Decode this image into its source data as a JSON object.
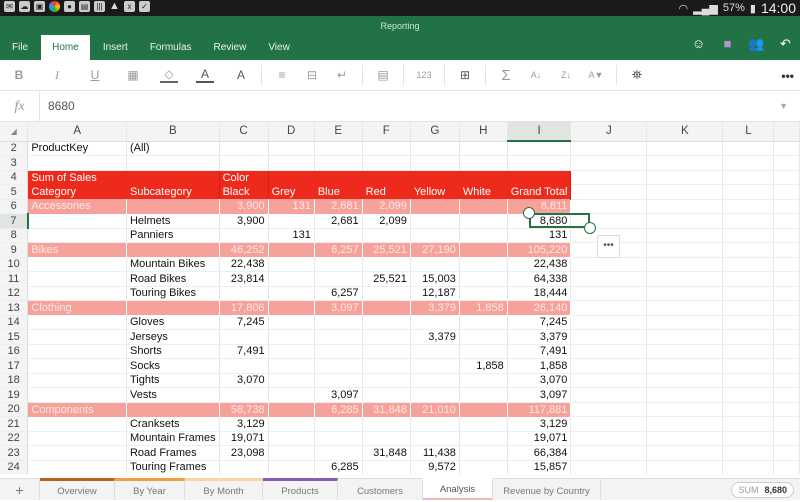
{
  "status_bar": {
    "notification_icons": [
      "mail-icon",
      "cloud-check-icon",
      "gallery-icon",
      "color-app-icon",
      "ghost-icon",
      "book-icon",
      "barcode-icon",
      "warning-icon",
      "excel-x-icon",
      "briefcase-check-icon"
    ],
    "battery": "57%",
    "time": "14:00"
  },
  "app": {
    "title": "Reporting",
    "menu_tabs": [
      {
        "label": "File"
      },
      {
        "label": "Home",
        "active": true
      },
      {
        "label": "Insert"
      },
      {
        "label": "Formulas"
      },
      {
        "label": "Review"
      },
      {
        "label": "View"
      }
    ],
    "title_icons": [
      "smiley-feedback-icon",
      "save-icon",
      "share-people-icon",
      "undo-icon"
    ]
  },
  "ribbon": {
    "bold": "B",
    "italic": "I",
    "underline": "U",
    "borders": "▦",
    "fill": "◇",
    "font_color": "A",
    "font_size": "A",
    "align": "≡",
    "merge": "⊟",
    "wrap": "↵",
    "cond_format": "▤",
    "number_format": "123",
    "insert_cells": "⊞",
    "autosum": "Σ",
    "sort_az": "A↓",
    "sort_za": "Z↓",
    "filter": "A▼",
    "find": "🔍",
    "more": "•••"
  },
  "formula_bar": {
    "fx_label": "fx",
    "value": "8680"
  },
  "sheet": {
    "columns": [
      "A",
      "B",
      "C",
      "D",
      "E",
      "F",
      "G",
      "H",
      "I",
      "J",
      "K",
      "L"
    ],
    "selected_column": "I",
    "selected_row": "7",
    "rows": [
      {
        "n": "2",
        "type": "plain",
        "cells": [
          "ProductKey",
          "(All)",
          "",
          "",
          "",
          "",
          "",
          "",
          ""
        ]
      },
      {
        "n": "3",
        "type": "plain",
        "cells": [
          "",
          "",
          "",
          "",
          "",
          "",
          "",
          "",
          ""
        ]
      },
      {
        "n": "4",
        "type": "hdr",
        "cells": [
          "Sum of Sales",
          "",
          "Color",
          "",
          "",
          "",
          "",
          "",
          ""
        ]
      },
      {
        "n": "5",
        "type": "hdr",
        "cells": [
          "Category",
          "Subcategory",
          "Black",
          "Grey",
          "Blue",
          "Red",
          "Yellow",
          "White",
          "Grand Total"
        ]
      },
      {
        "n": "6",
        "type": "cat",
        "cells": [
          "Accessories",
          "",
          "3,900",
          "131",
          "2,681",
          "2,099",
          "",
          "",
          "8,811"
        ]
      },
      {
        "n": "7",
        "type": "plain",
        "cells": [
          "",
          "Helmets",
          "3,900",
          "",
          "2,681",
          "2,099",
          "",
          "",
          "8,680"
        ]
      },
      {
        "n": "8",
        "type": "plain",
        "cells": [
          "",
          "Panniers",
          "",
          "131",
          "",
          "",
          "",
          "",
          "131"
        ]
      },
      {
        "n": "9",
        "type": "cat",
        "cells": [
          "Bikes",
          "",
          "46,252",
          "",
          "6,257",
          "25,521",
          "27,190",
          "",
          "105,220"
        ]
      },
      {
        "n": "10",
        "type": "plain",
        "cells": [
          "",
          "Mountain Bikes",
          "22,438",
          "",
          "",
          "",
          "",
          "",
          "22,438"
        ]
      },
      {
        "n": "11",
        "type": "plain",
        "cells": [
          "",
          "Road Bikes",
          "23,814",
          "",
          "",
          "25,521",
          "15,003",
          "",
          "64,338"
        ]
      },
      {
        "n": "12",
        "type": "plain",
        "cells": [
          "",
          "Touring Bikes",
          "",
          "",
          "6,257",
          "",
          "12,187",
          "",
          "18,444"
        ]
      },
      {
        "n": "13",
        "type": "cat",
        "cells": [
          "Clothing",
          "",
          "17,806",
          "",
          "3,097",
          "",
          "3,379",
          "1,858",
          "26,140"
        ]
      },
      {
        "n": "14",
        "type": "plain",
        "cells": [
          "",
          "Gloves",
          "7,245",
          "",
          "",
          "",
          "",
          "",
          "7,245"
        ]
      },
      {
        "n": "15",
        "type": "plain",
        "cells": [
          "",
          "Jerseys",
          "",
          "",
          "",
          "",
          "3,379",
          "",
          "3,379"
        ]
      },
      {
        "n": "16",
        "type": "plain",
        "cells": [
          "",
          "Shorts",
          "7,491",
          "",
          "",
          "",
          "",
          "",
          "7,491"
        ]
      },
      {
        "n": "17",
        "type": "plain",
        "cells": [
          "",
          "Socks",
          "",
          "",
          "",
          "",
          "",
          "1,858",
          "1,858"
        ]
      },
      {
        "n": "18",
        "type": "plain",
        "cells": [
          "",
          "Tights",
          "3,070",
          "",
          "",
          "",
          "",
          "",
          "3,070"
        ]
      },
      {
        "n": "19",
        "type": "plain",
        "cells": [
          "",
          "Vests",
          "",
          "",
          "3,097",
          "",
          "",
          "",
          "3,097"
        ]
      },
      {
        "n": "20",
        "type": "cat",
        "cells": [
          "Components",
          "",
          "58,738",
          "",
          "6,285",
          "31,848",
          "21,010",
          "",
          "117,881"
        ]
      },
      {
        "n": "21",
        "type": "plain",
        "cells": [
          "",
          "Cranksets",
          "3,129",
          "",
          "",
          "",
          "",
          "",
          "3,129"
        ]
      },
      {
        "n": "22",
        "type": "plain",
        "cells": [
          "",
          "Mountain Frames",
          "19,071",
          "",
          "",
          "",
          "",
          "",
          "19,071"
        ]
      },
      {
        "n": "23",
        "type": "plain",
        "cells": [
          "",
          "Road Frames",
          "23,098",
          "",
          "",
          "31,848",
          "11,438",
          "",
          "66,384"
        ]
      },
      {
        "n": "24",
        "type": "plain",
        "cells": [
          "",
          "Touring Frames",
          "",
          "",
          "6,285",
          "",
          "9,572",
          "",
          "15,857"
        ]
      }
    ],
    "context_menu_button": "•••"
  },
  "sheet_tabs": {
    "add_label": "+",
    "tabs": [
      {
        "label": "Overview",
        "color": "#b8621b"
      },
      {
        "label": "By Year",
        "color": "#f0a040"
      },
      {
        "label": "By Month",
        "color": "#f7d5a8"
      },
      {
        "label": "Products",
        "color": "#8a5ab8"
      },
      {
        "label": "Customers",
        "color": ""
      },
      {
        "label": "Analysis",
        "color": "#f4b6b0",
        "active": true
      },
      {
        "label": "Revenue by Country",
        "color": ""
      }
    ]
  },
  "status": {
    "sum_label": "SUM",
    "sum_value": "8,680"
  },
  "colors": {
    "brand_green": "#217346",
    "header_red": "#ee2a1c",
    "category_pink": "#f7a19b"
  }
}
